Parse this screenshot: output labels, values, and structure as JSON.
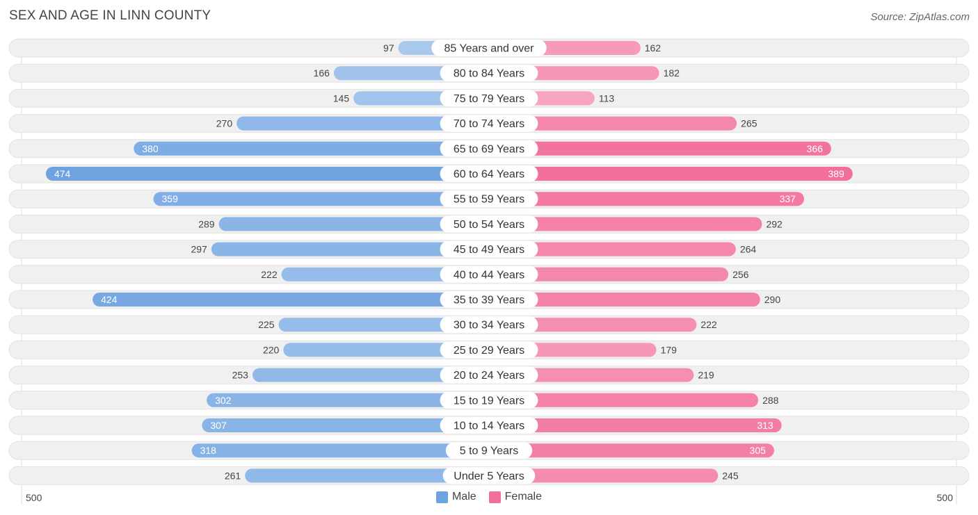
{
  "title": "SEX AND AGE IN LINN COUNTY",
  "source": "Source: ZipAtlas.com",
  "colors": {
    "male": "#6fa3e0",
    "male_light": "#a9c8ee",
    "female": "#f26f99",
    "female_light": "#f7a6c0",
    "row_bg": "#f0f0f0"
  },
  "axis": {
    "min_label": "500",
    "max_label": "500"
  },
  "legend": {
    "male": "Male",
    "female": "Female"
  },
  "chart_data": {
    "type": "bar",
    "orientation": "horizontal-diverging",
    "categories": [
      "85 Years and over",
      "80 to 84 Years",
      "75 to 79 Years",
      "70 to 74 Years",
      "65 to 69 Years",
      "60 to 64 Years",
      "55 to 59 Years",
      "50 to 54 Years",
      "45 to 49 Years",
      "40 to 44 Years",
      "35 to 39 Years",
      "30 to 34 Years",
      "25 to 29 Years",
      "20 to 24 Years",
      "15 to 19 Years",
      "10 to 14 Years",
      "5 to 9 Years",
      "Under 5 Years"
    ],
    "series": [
      {
        "name": "Male",
        "values": [
          97,
          166,
          145,
          270,
          380,
          474,
          359,
          289,
          297,
          222,
          424,
          225,
          220,
          253,
          302,
          307,
          318,
          261
        ]
      },
      {
        "name": "Female",
        "values": [
          162,
          182,
          113,
          265,
          366,
          389,
          337,
          292,
          264,
          256,
          290,
          222,
          179,
          219,
          288,
          313,
          305,
          245
        ]
      }
    ],
    "xlim": [
      -500,
      500
    ],
    "legend_position": "bottom-center"
  }
}
